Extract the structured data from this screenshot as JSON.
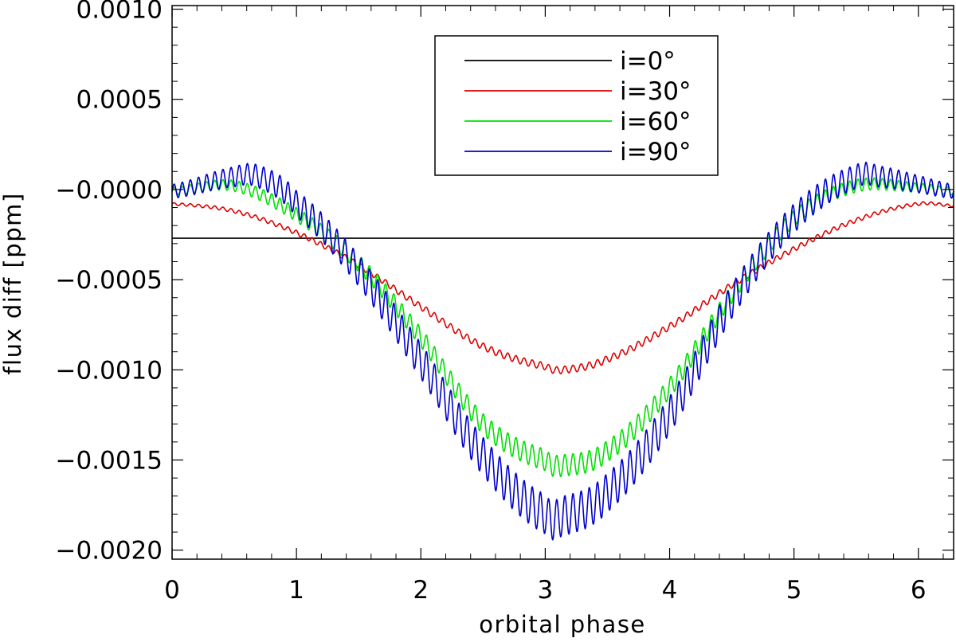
{
  "chart_data": {
    "type": "line",
    "xlabel": "orbital phase",
    "ylabel": "flux diff [ppm]",
    "xlim": [
      0,
      6.2832
    ],
    "ylim": [
      -0.00205,
      0.00102
    ],
    "x_ticks": [
      {
        "value": 0,
        "label": "0"
      },
      {
        "value": 1,
        "label": "1"
      },
      {
        "value": 2,
        "label": "2"
      },
      {
        "value": 3,
        "label": "3"
      },
      {
        "value": 4,
        "label": "4"
      },
      {
        "value": 5,
        "label": "5"
      },
      {
        "value": 6,
        "label": "6"
      }
    ],
    "y_ticks": [
      {
        "value": 0.001,
        "label": "0.0010"
      },
      {
        "value": 0.0005,
        "label": "0.0005"
      },
      {
        "value": 0.0,
        "label": "−0.0000"
      },
      {
        "value": -0.0005,
        "label": "−0.0005"
      },
      {
        "value": -0.001,
        "label": "−0.0010"
      },
      {
        "value": -0.0015,
        "label": "−0.0015"
      },
      {
        "value": -0.002,
        "label": "−0.0020"
      }
    ],
    "legend_position": "top-center",
    "series": [
      {
        "name": "i=0°",
        "color": "#000000",
        "x": [
          0,
          1,
          2,
          3,
          4,
          5,
          6.2832
        ],
        "y": [
          -0.00027,
          -0.00027,
          -0.00027,
          -0.00027,
          -0.00027,
          -0.00027,
          -0.00027
        ],
        "ripple_amplitude": 0
      },
      {
        "name": "i=30°",
        "color": "#dd0000",
        "x": [
          0,
          0.5,
          1.0,
          1.5,
          2.0,
          2.5,
          3.0,
          3.14,
          3.5,
          4.0,
          4.5,
          5.0,
          5.5,
          6.0,
          6.28
        ],
        "y": [
          -8e-05,
          -0.00012,
          -0.00024,
          -0.00042,
          -0.00065,
          -0.00087,
          -0.00098,
          -0.001,
          -0.00094,
          -0.00076,
          -0.00053,
          -0.00033,
          -0.00017,
          -8e-05,
          -9e-05
        ],
        "ripple_amplitude": 2e-05
      },
      {
        "name": "i=60°",
        "color": "#00e000",
        "x": [
          0,
          0.5,
          1.0,
          1.5,
          2.0,
          2.5,
          3.0,
          3.14,
          3.5,
          4.0,
          4.5,
          5.0,
          5.5,
          6.0,
          6.28
        ],
        "y": [
          -1e-05,
          2e-05,
          -0.00014,
          -0.00041,
          -0.00082,
          -0.0013,
          -0.0015,
          -0.00153,
          -0.00145,
          -0.0011,
          -0.00058,
          -0.00016,
          2e-05,
          1e-05,
          -1e-05
        ],
        "ripple_amplitude": 6e-05
      },
      {
        "name": "i=90°",
        "color": "#0000cc",
        "x": [
          0,
          0.5,
          0.7,
          1.0,
          1.5,
          2.0,
          2.5,
          3.0,
          3.14,
          3.5,
          4.0,
          4.5,
          5.0,
          5.5,
          5.7,
          6.0,
          6.28
        ],
        "y": [
          -1e-05,
          7e-05,
          7e-05,
          -8e-05,
          -0.00045,
          -0.00095,
          -0.00148,
          -0.0018,
          -0.00181,
          -0.00168,
          -0.00125,
          -0.00062,
          -0.00016,
          7e-05,
          7e-05,
          3e-05,
          -1e-05
        ],
        "ripple_amplitude": 0.00011
      }
    ]
  }
}
